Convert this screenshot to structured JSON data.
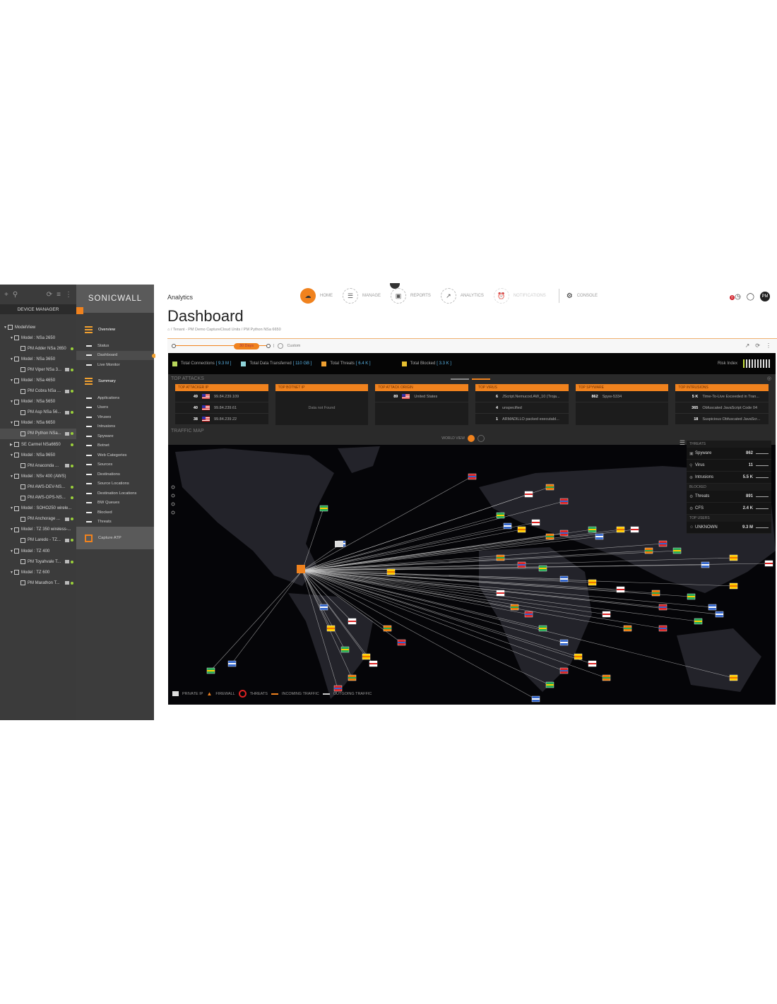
{
  "tree": {
    "title": "DEVICE MANAGER",
    "rows": [
      {
        "label": "ModelView",
        "level": 0,
        "exp": true
      },
      {
        "label": "Model : NSa 2650",
        "level": 1,
        "exp": true
      },
      {
        "label": "PM Adder NSa 2650",
        "level": 2,
        "dot": true
      },
      {
        "label": "Model : NSa 3650",
        "level": 1,
        "exp": true
      },
      {
        "label": "PM Viper NSa 3...",
        "level": 2,
        "icon": true,
        "dot": true
      },
      {
        "label": "Model : NSa 4650",
        "level": 1,
        "exp": true
      },
      {
        "label": "PM Cobra NSa ...",
        "level": 2,
        "icon": true,
        "dot": true
      },
      {
        "label": "Model : NSa 5650",
        "level": 1,
        "exp": true
      },
      {
        "label": "PM Asp NSa 56...",
        "level": 2,
        "icon": true,
        "dot": true
      },
      {
        "label": "Model : NSa 6650",
        "level": 1,
        "exp": true
      },
      {
        "label": "PM Python NSa...",
        "level": 2,
        "icon": true,
        "dot": true,
        "selected": true
      },
      {
        "label": "SE Carmel NSa6650",
        "level": 1,
        "collapsed": true,
        "dot": true
      },
      {
        "label": "Model : NSa 9650",
        "level": 1,
        "exp": true
      },
      {
        "label": "PM Anaconda ...",
        "level": 2,
        "icon": true,
        "dot": true
      },
      {
        "label": "Model : NSv 400 (AWS)",
        "level": 1,
        "exp": true
      },
      {
        "label": "PM AWS-DEV-NS...",
        "level": 2,
        "dot": true
      },
      {
        "label": "PM AWS-OPS-NS...",
        "level": 2,
        "dot": true
      },
      {
        "label": "Model : SOHO250 wirele...",
        "level": 1,
        "exp": true
      },
      {
        "label": "PM Anchorage ...",
        "level": 2,
        "icon": true,
        "dot": true
      },
      {
        "label": "Model : TZ 350 wireless-...",
        "level": 1,
        "exp": true
      },
      {
        "label": "PM Laredo - TZ...",
        "level": 2,
        "icon": true,
        "dot": true
      },
      {
        "label": "Model : TZ 400",
        "level": 1,
        "exp": true
      },
      {
        "label": "PM Toyahvale T...",
        "level": 2,
        "icon": true,
        "dot": true
      },
      {
        "label": "Model : TZ 600",
        "level": 1,
        "exp": true
      },
      {
        "label": "PM Marathon T...",
        "level": 2,
        "icon": true,
        "dot": true
      }
    ]
  },
  "nav": {
    "logo": "SONICWALL",
    "overview": "Overview",
    "overview_items": [
      "Status",
      "Dashboard",
      "Live Monitor"
    ],
    "active": "Dashboard",
    "summary": "Summary",
    "summary_items": [
      "Applications",
      "Users",
      "Viruses",
      "Intrusions",
      "Spyware",
      "Botnet",
      "Web Categories",
      "Sources",
      "Destinations",
      "Source Locations",
      "Destination Locations",
      "BW Queues",
      "Blocked",
      "Threats"
    ],
    "capture": "Capture ATP"
  },
  "header": {
    "section": "Analytics",
    "title": "Dashboard",
    "breadcrumb": "/ Tenant - PM Demo CaptureCloud Units / PM Python NSa 6650",
    "topnav": [
      {
        "label": "HOME",
        "state": "active"
      },
      {
        "label": "MANAGE"
      },
      {
        "label": "REPORTS"
      },
      {
        "label": "ANALYTICS"
      },
      {
        "label": "NOTIFICATIONS",
        "state": "disabled"
      }
    ],
    "console": "CONSOLE",
    "alert_count": "0",
    "avatar": "PM"
  },
  "timebar": {
    "range": "30 Days",
    "custom": "Custom"
  },
  "summary": [
    {
      "label": "Total Connections",
      "value": "[ 9.3 M ]",
      "color": "#b8d65a"
    },
    {
      "label": "Total Data Transferred",
      "value": "[ 110 GB ]",
      "color": "#8fd3d8"
    },
    {
      "label": "Total Threats",
      "value": "[ 6.4 K ]",
      "color": "#f0a030"
    },
    {
      "label": "Total Blocked",
      "value": "[ 3.3 K ]",
      "color": "#e8c030"
    }
  ],
  "risk": {
    "label": "Risk Index",
    "level": 1,
    "of": 10
  },
  "top_attacks": {
    "title": "TOP ATTACKS",
    "cards": [
      {
        "title": "TOP ATTACKER IP",
        "rows": [
          {
            "n": "49",
            "t": "99.84.239.109",
            "flag": true
          },
          {
            "n": "40",
            "t": "99.84.239.61",
            "flag": true
          },
          {
            "n": "38",
            "t": "99.84.239.22",
            "flag": true
          }
        ]
      },
      {
        "title": "TOP BOTNET IP",
        "empty": "Data not Found",
        "rows": []
      },
      {
        "title": "TOP ATTACK ORIGIN",
        "rows": [
          {
            "n": "89",
            "t": "United States",
            "flag": true
          }
        ]
      },
      {
        "title": "TOP VIRUS",
        "rows": [
          {
            "n": "6",
            "t": "JScript.Nemucod.AW_10 (Troja..."
          },
          {
            "n": "4",
            "t": "unspecified"
          },
          {
            "n": "1",
            "t": "ARMADILLO packed executabl..."
          }
        ]
      },
      {
        "title": "TOP SPYWARE",
        "rows": [
          {
            "n": "862",
            "t": "Spyw-5334"
          }
        ]
      },
      {
        "title": "TOP INTRUSIONS",
        "rows": [
          {
            "n": "5 K",
            "t": "Time-To-Live Exceeded in Tran..."
          },
          {
            "n": "365",
            "t": "Obfuscated JavaScript Code 04"
          },
          {
            "n": "18",
            "t": "Suspicious Obfuscated JavaScr..."
          }
        ]
      }
    ]
  },
  "traffic_map": {
    "title": "TRAFFIC MAP",
    "world_view": "WORLD VIEW",
    "groups": [
      {
        "title": "THREATS",
        "items": [
          {
            "icon": "spyware-icon",
            "label": "Spyware",
            "value": "862"
          },
          {
            "icon": "virus-icon",
            "label": "Virus",
            "value": "11"
          },
          {
            "icon": "intrusion-icon",
            "label": "Intrusions",
            "value": "5.5 K"
          }
        ]
      },
      {
        "title": "BLOCKED",
        "items": [
          {
            "icon": "blocked-threat-icon",
            "label": "Threats",
            "value": "891"
          },
          {
            "icon": "cfs-icon",
            "label": "CFS",
            "value": "2.4 K"
          }
        ]
      },
      {
        "title": "TOP USERS",
        "items": [
          {
            "icon": "user-icon",
            "label": "UNKNOWN",
            "value": "9.3 M"
          }
        ]
      }
    ],
    "legend": {
      "private_ip": "PRIVATE IP",
      "firewall": "FIREWALL",
      "threats": "THREATS",
      "incoming": "INCOMING TRAFFIC",
      "outgoing": "OUTGOING TRAFFIC"
    }
  },
  "colors": {
    "accent": "#f0821e",
    "sidebar": "#3b3b3b",
    "map_bg": "#050508"
  }
}
